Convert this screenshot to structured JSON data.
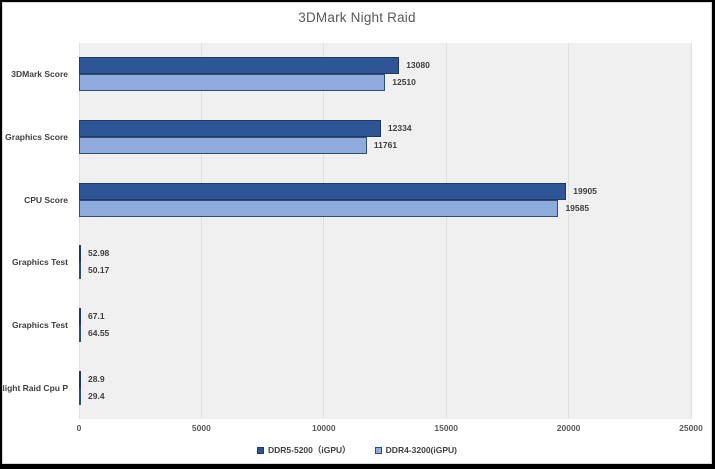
{
  "window": {
    "title": "3DMark Night Raid"
  },
  "chart_data": {
    "type": "bar",
    "orientation": "horizontal",
    "title": "3DMark Night Raid",
    "categories": [
      "3DMark Score",
      "Graphics Score",
      "CPU Score",
      "Graphics Test",
      "Graphics Test",
      "Night Raid Cpu P"
    ],
    "series": [
      {
        "name": "DDR5-5200（iGPU）",
        "values": [
          13080,
          12334,
          19905,
          52.98,
          67.1,
          28.9
        ],
        "value_labels": [
          "13080",
          "12334",
          "19905",
          "52.98",
          "67.1",
          "28.9"
        ],
        "fill": "#2E5596",
        "border": "#1F3864"
      },
      {
        "name": "DDR4-3200(iGPU)",
        "values": [
          12510,
          11761,
          19585,
          50.17,
          64.55,
          29.4
        ],
        "value_labels": [
          "12510",
          "11761",
          "19585",
          "50.17",
          "64.55",
          "29.4"
        ],
        "fill": "#8FAADC",
        "border": "#2E4D7B"
      }
    ],
    "xlim": [
      0,
      25000
    ],
    "x_ticks": [
      0,
      5000,
      10000,
      15000,
      20000,
      25000
    ],
    "x_tick_labels": [
      "0",
      "5000",
      "10000",
      "15000",
      "20000",
      "25000"
    ],
    "grid": "vertical-on",
    "legend_position": "bottom",
    "colors": {
      "plot_background": "#F0F0F0",
      "gridline": "#E0E0E0",
      "title_text": "#595959",
      "label_text": "#3F3F3F",
      "axis_text": "#595959",
      "chart_border": "#D9D9D9",
      "outer_frame": "#000000"
    }
  }
}
